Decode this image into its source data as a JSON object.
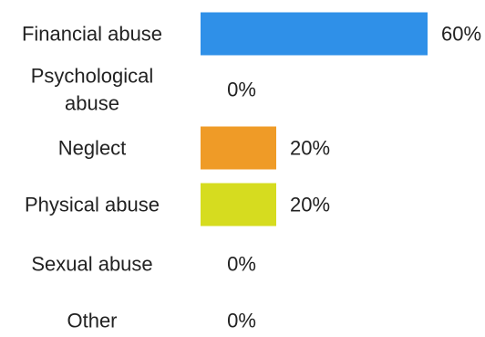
{
  "chart_data": {
    "type": "bar",
    "orientation": "horizontal",
    "categories": [
      [
        "Financial abuse"
      ],
      [
        "Psychological",
        "abuse"
      ],
      [
        "Neglect"
      ],
      [
        "Physical abuse"
      ],
      [
        "Sexual abuse"
      ],
      [
        "Other"
      ]
    ],
    "values": [
      60,
      0,
      20,
      20,
      0,
      0
    ],
    "value_labels": [
      "60%",
      "0%",
      "20%",
      "20%",
      "0%",
      "0%"
    ],
    "bar_colors": [
      "#2f90e8",
      "#2f90e8",
      "#ef9b27",
      "#d6dc1f",
      "#2f90e8",
      "#2f90e8"
    ],
    "xlim": [
      0,
      60
    ],
    "title": "",
    "xlabel": "",
    "ylabel": "",
    "grid": false,
    "legend": "none"
  }
}
